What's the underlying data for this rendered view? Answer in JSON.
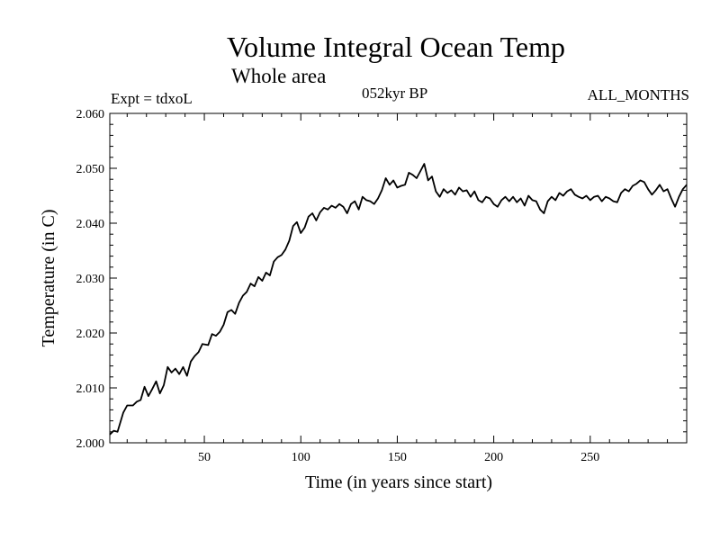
{
  "header": {
    "title": "Volume Integral Ocean Temp",
    "subtitle": "Whole area",
    "experiment": "Expt = tdxoL",
    "period": "052kyr BP",
    "months": "ALL_MONTHS"
  },
  "chart_data": {
    "type": "line",
    "title": "Volume Integral Ocean Temp",
    "subtitle": "Whole area",
    "xlabel": "Time (in years since start)",
    "ylabel": "Temperature (in C)",
    "xlim": [
      1,
      300
    ],
    "ylim": [
      2.0,
      2.06
    ],
    "xticks": [
      50,
      100,
      150,
      200,
      250
    ],
    "yticks": [
      2.0,
      2.01,
      2.02,
      2.03,
      2.04,
      2.05,
      2.06
    ],
    "ytick_labels": [
      "2.000",
      "2.010",
      "2.020",
      "2.030",
      "2.040",
      "2.050",
      "2.060"
    ],
    "grid": false,
    "legend": "none",
    "line_color": "#000000",
    "series": [
      {
        "x": [
          1,
          3,
          5,
          8,
          10,
          13,
          15,
          17,
          19,
          21,
          23,
          25,
          27,
          29,
          31,
          33,
          35,
          37,
          39,
          41,
          43,
          45,
          47,
          49,
          52,
          54,
          56,
          58,
          60,
          62,
          64,
          66,
          68,
          70,
          72,
          74,
          76,
          78,
          80,
          82,
          84,
          86,
          88,
          90,
          92,
          94,
          96,
          98,
          100,
          102,
          104,
          106,
          108,
          110,
          112,
          114,
          116,
          118,
          120,
          122,
          124,
          126,
          128,
          130,
          132,
          134,
          136,
          138,
          140,
          142,
          144,
          146,
          148,
          150,
          152,
          154,
          156,
          158,
          160,
          162,
          164,
          166,
          168,
          170,
          172,
          174,
          176,
          178,
          180,
          182,
          184,
          186,
          188,
          190,
          192,
          194,
          196,
          198,
          200,
          202,
          204,
          206,
          208,
          210,
          212,
          214,
          216,
          218,
          220,
          222,
          224,
          226,
          228,
          230,
          232,
          234,
          236,
          238,
          240,
          242,
          244,
          246,
          248,
          250,
          252,
          254,
          256,
          258,
          260,
          262,
          264,
          266,
          268,
          270,
          272,
          274,
          276,
          278,
          280,
          282,
          284,
          286,
          288,
          290,
          292,
          294,
          296,
          298,
          300
        ],
        "values": [
          2.0015,
          2.0022,
          2.002,
          2.0055,
          2.0068,
          2.0068,
          2.0075,
          2.0078,
          2.0102,
          2.0085,
          2.0098,
          2.0112,
          2.009,
          2.0105,
          2.0138,
          2.0128,
          2.0135,
          2.0125,
          2.0138,
          2.0122,
          2.0148,
          2.0158,
          2.0165,
          2.018,
          2.0178,
          2.0198,
          2.0195,
          2.0202,
          2.0215,
          2.0238,
          2.0242,
          2.0235,
          2.0255,
          2.0268,
          2.0275,
          2.029,
          2.0285,
          2.0302,
          2.0295,
          2.031,
          2.0305,
          2.033,
          2.0338,
          2.0342,
          2.0352,
          2.0368,
          2.0395,
          2.0402,
          2.0382,
          2.0392,
          2.0412,
          2.0418,
          2.0405,
          2.042,
          2.0428,
          2.0425,
          2.0432,
          2.0428,
          2.0435,
          2.043,
          2.0418,
          2.0435,
          2.044,
          2.0425,
          2.0448,
          2.0442,
          2.044,
          2.0435,
          2.0445,
          2.046,
          2.0482,
          2.047,
          2.0478,
          2.0465,
          2.0468,
          2.047,
          2.0492,
          2.0488,
          2.0482,
          2.0495,
          2.0508,
          2.0478,
          2.0485,
          2.0458,
          2.0448,
          2.0462,
          2.0455,
          2.046,
          2.0452,
          2.0465,
          2.0458,
          2.046,
          2.0448,
          2.0458,
          2.0442,
          2.0438,
          2.0448,
          2.0445,
          2.0435,
          2.043,
          2.0442,
          2.0448,
          2.044,
          2.0448,
          2.0438,
          2.0445,
          2.0432,
          2.045,
          2.0442,
          2.044,
          2.0425,
          2.0418,
          2.044,
          2.0448,
          2.0442,
          2.0455,
          2.045,
          2.0458,
          2.0462,
          2.0452,
          2.0448,
          2.0445,
          2.045,
          2.0442,
          2.0448,
          2.045,
          2.044,
          2.0448,
          2.0445,
          2.044,
          2.0438,
          2.0455,
          2.0462,
          2.0458,
          2.0468,
          2.0472,
          2.0478,
          2.0475,
          2.0462,
          2.0452,
          2.046,
          2.047,
          2.0458,
          2.0462,
          2.0445,
          2.043,
          2.0448,
          2.0462,
          2.047
        ]
      }
    ]
  }
}
